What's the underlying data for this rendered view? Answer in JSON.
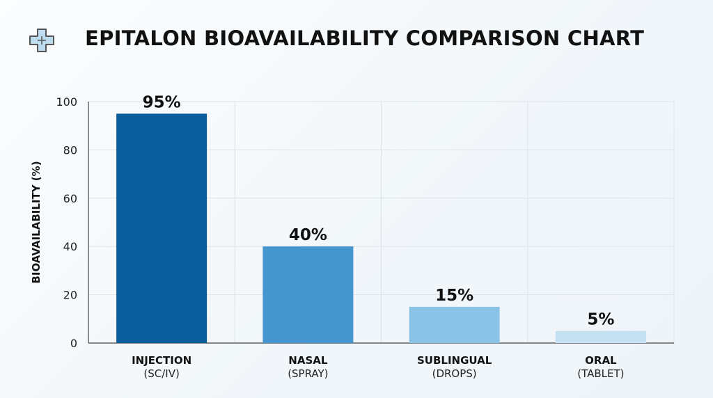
{
  "title": "EPITALON BIOAVAILABILITY COMPARISON CHART",
  "icon": "medical-cross-icon",
  "chart_data": {
    "type": "bar",
    "title": "EPITALON BIOAVAILABILITY COMPARISON CHART",
    "xlabel": "",
    "ylabel": "BIOAVAILABILITY (%)",
    "ylim": [
      0,
      100
    ],
    "yticks": [
      0,
      20,
      40,
      60,
      80,
      100
    ],
    "grid": true,
    "categories": [
      {
        "line1": "INJECTION",
        "line2": "(SC/IV)"
      },
      {
        "line1": "NASAL",
        "line2": "(SPRAY)"
      },
      {
        "line1": "SUBLINGUAL",
        "line2": "(DROPS)"
      },
      {
        "line1": "ORAL",
        "line2": "(TABLET)"
      }
    ],
    "values": [
      95,
      40,
      15,
      5
    ],
    "data_labels": [
      "95%",
      "40%",
      "15%",
      "5%"
    ],
    "colors": [
      "#0b5e9c",
      "#4595cf",
      "#8ac3e6",
      "#c4e0f3"
    ]
  }
}
